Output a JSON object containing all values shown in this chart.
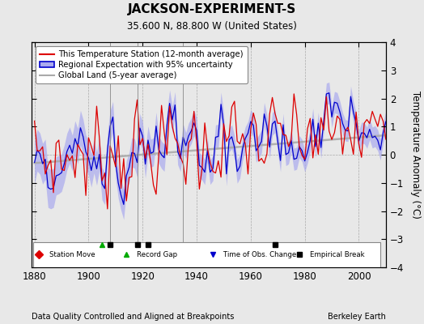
{
  "title": "JACKSON-EXPERIMENT-S",
  "subtitle": "35.600 N, 88.800 W (United States)",
  "ylabel": "Temperature Anomaly (°C)",
  "xlabel_left": "Data Quality Controlled and Aligned at Breakpoints",
  "xlabel_right": "Berkeley Earth",
  "year_start": 1880,
  "year_end": 2011,
  "ylim": [
    -4,
    4
  ],
  "yticks": [
    -4,
    -3,
    -2,
    -1,
    0,
    1,
    2,
    3,
    4
  ],
  "xticks": [
    1880,
    1900,
    1920,
    1940,
    1960,
    1980,
    2000
  ],
  "background_color": "#e8e8e8",
  "plot_background": "#e8e8e8",
  "station_color": "#dd0000",
  "regional_color": "#0000cc",
  "regional_fill_color": "#aaaaee",
  "global_color": "#aaaaaa",
  "legend_items": [
    "This Temperature Station (12-month average)",
    "Regional Expectation with 95% uncertainty",
    "Global Land (5-year average)"
  ],
  "marker_events": {
    "record_gap": [
      1905
    ],
    "empirical_break": [
      1908,
      1918,
      1922,
      1969
    ]
  },
  "vertical_lines": [
    1908,
    1918,
    1935
  ],
  "marker_y": -3.2,
  "legend_box_items": [
    [
      "D",
      "#dd0000",
      "Station Move"
    ],
    [
      "^",
      "#00aa00",
      "Record Gap"
    ],
    [
      "v",
      "#0000cc",
      "Time of Obs. Change"
    ],
    [
      "s",
      "#000000",
      "Empirical Break"
    ]
  ]
}
